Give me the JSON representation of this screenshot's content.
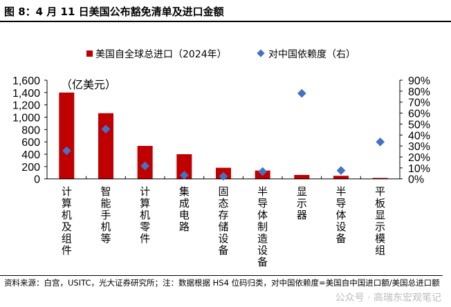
{
  "title": "图 8：4 月 11 日美国公布豁免清单及进口金额",
  "note": "资料来源：白宫，USITC，光大证券研究所；注：数据根据 HS4 位码归类，对中国依赖度=美国自中国进口额/美国总进口额",
  "watermark": "公众号 · 高瑞东宏观笔记",
  "chart_data": {
    "type": "bar",
    "categories": [
      "计算机及组件",
      "智能手机等",
      "计算机零件",
      "集成电路",
      "固态存储设备",
      "半导体制造设备",
      "显示器",
      "半导体设备",
      "平板显示模组"
    ],
    "unit_label": "（亿美元）",
    "series": [
      {
        "name": "美国自全球总进口（2024年）",
        "type": "bar",
        "axis": "left",
        "color": "#C00000",
        "values": [
          1400,
          1065,
          535,
          400,
          180,
          135,
          64,
          50,
          15
        ]
      },
      {
        "name": "对中国依赖度（右）",
        "type": "scatter",
        "axis": "right",
        "color": "#4472C4",
        "values": [
          25.7,
          45.4,
          11.8,
          3.4,
          2.3,
          6.7,
          78,
          7.6,
          33.7
        ]
      }
    ],
    "left_axis": {
      "range": [
        0,
        1600
      ],
      "ticks": [
        "0",
        "200",
        "400",
        "600",
        "800",
        "1,000",
        "1,200",
        "1,400",
        "1,600"
      ]
    },
    "right_axis": {
      "range": [
        0,
        90
      ],
      "ticks": [
        "0%",
        "10%",
        "20%",
        "30%",
        "40%",
        "50%",
        "60%",
        "70%",
        "80%",
        "90%"
      ]
    },
    "legend_placement": "top"
  }
}
